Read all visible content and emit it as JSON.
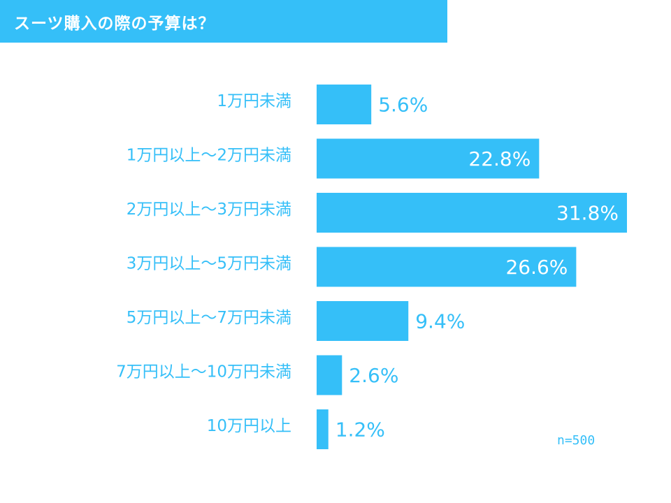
{
  "chart_data": {
    "type": "bar",
    "orientation": "horizontal",
    "title": "スーツ購入の際の予算は？",
    "categories": [
      "1万円未満",
      "1万円以上～2万円未満",
      "2万円以上～3万円未満",
      "3万円以上～5万円未満",
      "5万円以上～7万円未満",
      "7万円以上～10万円未満",
      "10万円以上"
    ],
    "values": [
      5.6,
      22.8,
      31.8,
      26.6,
      9.4,
      2.6,
      1.2
    ],
    "value_labels": [
      "5.6%",
      "22.8%",
      "31.8%",
      "26.6%",
      "9.4%",
      "2.6%",
      "1.2%"
    ],
    "unit": "%",
    "xlim": [
      0,
      31.8
    ],
    "grid": false,
    "legend": "none",
    "note": "n=500"
  },
  "colors": {
    "bar": "#35BFF8",
    "label_text": "#35BFF8",
    "inner_label_text": "#ffffff",
    "title_bg": "#35BFF8"
  }
}
